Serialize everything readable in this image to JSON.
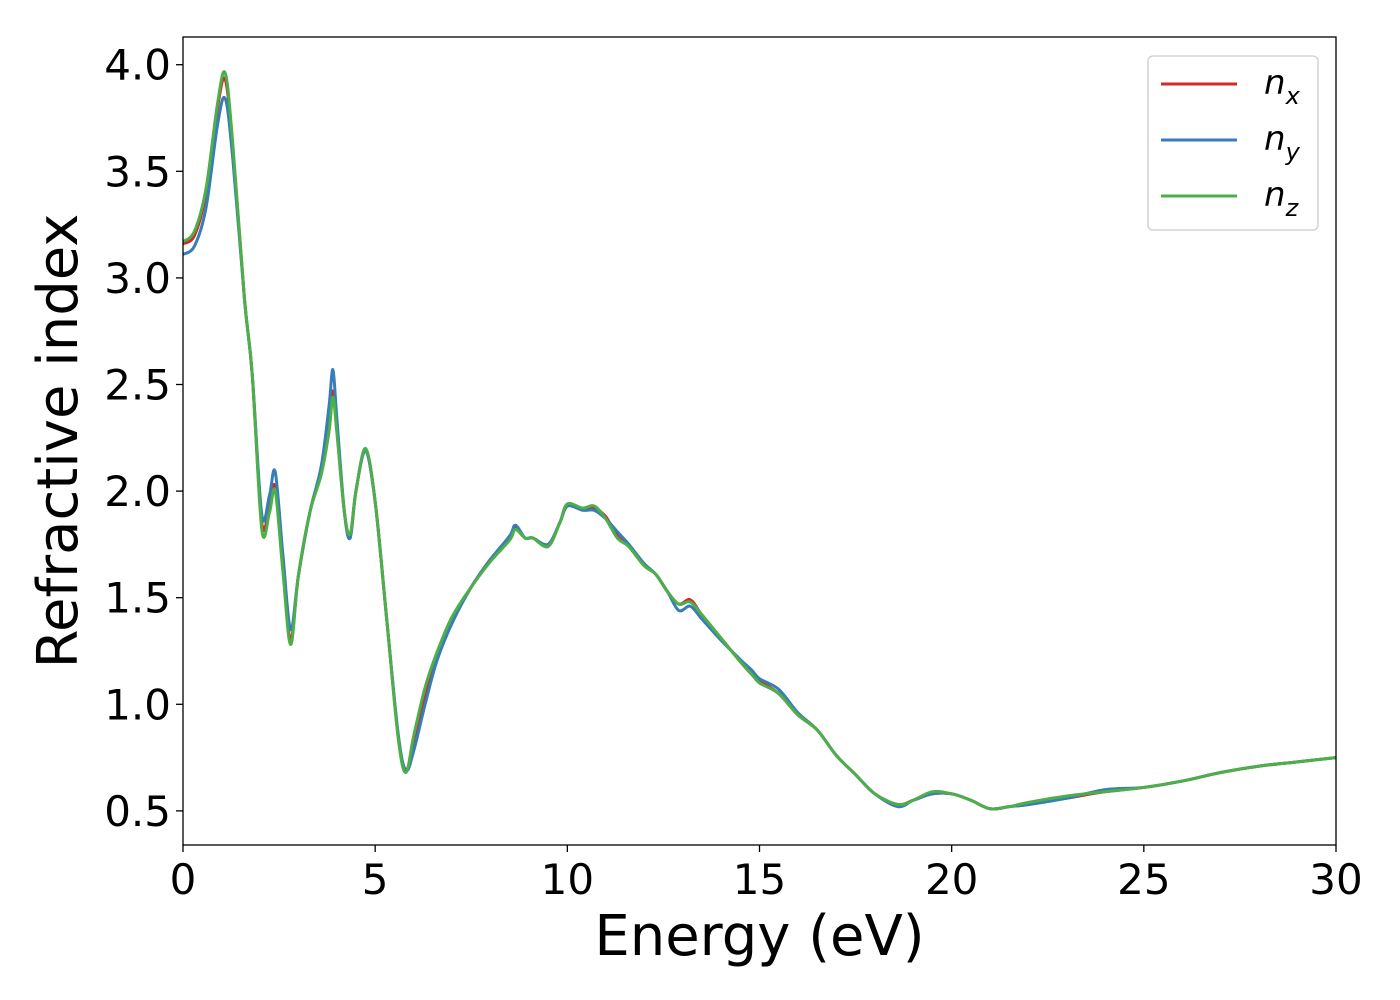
{
  "chart_data": {
    "type": "line",
    "title": "",
    "xlabel": "Energy (eV)",
    "ylabel": "Refractive index",
    "xlim": [
      0,
      30
    ],
    "ylim": [
      0.34,
      4.13
    ],
    "xticks": [
      0,
      5,
      10,
      15,
      20,
      25,
      30
    ],
    "xtick_labels": [
      "0",
      "5",
      "10",
      "15",
      "20",
      "25",
      "30"
    ],
    "yticks": [
      0.5,
      1.0,
      1.5,
      2.0,
      2.5,
      3.0,
      3.5,
      4.0
    ],
    "ytick_labels": [
      "0.5",
      "1.0",
      "1.5",
      "2.0",
      "2.5",
      "3.0",
      "3.5",
      "4.0"
    ],
    "grid": false,
    "legend_position": "top-right",
    "series": [
      {
        "name": "n_x",
        "name_main": "n",
        "name_sub": "x",
        "color": "#d62728",
        "x": [
          0,
          0.3,
          0.6,
          0.9,
          1.1,
          1.3,
          1.6,
          1.8,
          2.05,
          2.25,
          2.4,
          2.6,
          2.8,
          3.0,
          3.3,
          3.6,
          3.8,
          3.9,
          4.0,
          4.2,
          4.35,
          4.5,
          4.75,
          5.0,
          5.3,
          5.6,
          5.8,
          6.0,
          6.3,
          6.6,
          7.0,
          7.5,
          8.0,
          8.5,
          8.65,
          8.9,
          9.1,
          9.5,
          9.8,
          10.0,
          10.4,
          10.7,
          11.0,
          11.3,
          11.6,
          12.0,
          12.3,
          12.6,
          12.9,
          13.2,
          13.5,
          14.0,
          14.5,
          14.8,
          15.0,
          15.5,
          16.0,
          16.5,
          17.0,
          17.5,
          18.0,
          18.6,
          19.0,
          19.5,
          20.0,
          20.5,
          21.0,
          21.5,
          22.0,
          23.0,
          24.0,
          25.0,
          26.0,
          27.0,
          28.0,
          29.0,
          30.0
        ],
        "y": [
          3.16,
          3.2,
          3.4,
          3.8,
          3.93,
          3.6,
          2.9,
          2.55,
          1.85,
          1.93,
          2.02,
          1.65,
          1.3,
          1.6,
          1.9,
          2.1,
          2.32,
          2.47,
          2.3,
          1.9,
          1.79,
          2.0,
          2.19,
          1.95,
          1.4,
          0.85,
          0.69,
          0.82,
          1.05,
          1.22,
          1.4,
          1.55,
          1.68,
          1.78,
          1.83,
          1.78,
          1.78,
          1.75,
          1.85,
          1.93,
          1.92,
          1.92,
          1.88,
          1.79,
          1.74,
          1.65,
          1.61,
          1.53,
          1.47,
          1.49,
          1.42,
          1.31,
          1.2,
          1.14,
          1.11,
          1.05,
          0.95,
          0.88,
          0.76,
          0.67,
          0.58,
          0.53,
          0.55,
          0.58,
          0.58,
          0.55,
          0.51,
          0.52,
          0.53,
          0.56,
          0.59,
          0.61,
          0.64,
          0.68,
          0.71,
          0.73,
          0.75
        ]
      },
      {
        "name": "n_y",
        "name_main": "n",
        "name_sub": "y",
        "color": "#377eb8",
        "x": [
          0,
          0.3,
          0.6,
          0.9,
          1.1,
          1.3,
          1.6,
          1.8,
          2.05,
          2.25,
          2.4,
          2.6,
          2.8,
          3.0,
          3.3,
          3.6,
          3.8,
          3.9,
          4.0,
          4.2,
          4.35,
          4.5,
          4.75,
          5.0,
          5.3,
          5.6,
          5.8,
          6.0,
          6.3,
          6.6,
          7.0,
          7.5,
          8.0,
          8.5,
          8.65,
          8.9,
          9.1,
          9.5,
          9.8,
          10.0,
          10.4,
          10.7,
          11.0,
          11.3,
          11.6,
          12.0,
          12.3,
          12.6,
          12.9,
          13.2,
          13.5,
          14.0,
          14.5,
          14.8,
          15.0,
          15.5,
          16.0,
          16.5,
          17.0,
          17.5,
          18.0,
          18.6,
          19.0,
          19.5,
          20.0,
          20.5,
          21.0,
          21.5,
          22.0,
          23.0,
          24.0,
          25.0,
          26.0,
          27.0,
          28.0,
          29.0,
          30.0
        ],
        "y": [
          3.11,
          3.15,
          3.33,
          3.72,
          3.84,
          3.55,
          2.9,
          2.55,
          1.89,
          1.98,
          2.09,
          1.7,
          1.35,
          1.6,
          1.9,
          2.12,
          2.4,
          2.57,
          2.35,
          1.9,
          1.78,
          2.0,
          2.19,
          1.95,
          1.4,
          0.86,
          0.69,
          0.78,
          1.0,
          1.2,
          1.38,
          1.55,
          1.68,
          1.79,
          1.84,
          1.78,
          1.78,
          1.75,
          1.85,
          1.93,
          1.91,
          1.91,
          1.87,
          1.81,
          1.75,
          1.66,
          1.61,
          1.53,
          1.44,
          1.46,
          1.4,
          1.3,
          1.21,
          1.16,
          1.12,
          1.07,
          0.96,
          0.88,
          0.76,
          0.67,
          0.58,
          0.52,
          0.55,
          0.58,
          0.58,
          0.55,
          0.51,
          0.52,
          0.53,
          0.56,
          0.6,
          0.61,
          0.64,
          0.68,
          0.71,
          0.73,
          0.75
        ]
      },
      {
        "name": "n_z",
        "name_main": "n",
        "name_sub": "z",
        "color": "#4daf4a",
        "x": [
          0,
          0.3,
          0.6,
          0.9,
          1.1,
          1.3,
          1.6,
          1.8,
          2.05,
          2.25,
          2.4,
          2.6,
          2.8,
          3.0,
          3.3,
          3.6,
          3.8,
          3.9,
          4.0,
          4.2,
          4.35,
          4.5,
          4.75,
          5.0,
          5.3,
          5.6,
          5.8,
          6.0,
          6.3,
          6.6,
          7.0,
          7.5,
          8.0,
          8.5,
          8.65,
          8.9,
          9.1,
          9.5,
          9.8,
          10.0,
          10.4,
          10.7,
          11.0,
          11.3,
          11.6,
          12.0,
          12.3,
          12.6,
          12.9,
          13.2,
          13.5,
          14.0,
          14.5,
          14.8,
          15.0,
          15.5,
          16.0,
          16.5,
          17.0,
          17.5,
          18.0,
          18.6,
          19.0,
          19.5,
          20.0,
          20.5,
          21.0,
          21.5,
          22.0,
          23.0,
          24.0,
          25.0,
          26.0,
          27.0,
          28.0,
          29.0,
          30.0
        ],
        "y": [
          3.17,
          3.22,
          3.42,
          3.82,
          3.96,
          3.62,
          2.9,
          2.55,
          1.82,
          1.9,
          2.0,
          1.62,
          1.28,
          1.6,
          1.9,
          2.08,
          2.28,
          2.44,
          2.28,
          1.9,
          1.8,
          2.0,
          2.2,
          1.95,
          1.4,
          0.84,
          0.68,
          0.85,
          1.08,
          1.24,
          1.41,
          1.55,
          1.67,
          1.77,
          1.82,
          1.78,
          1.78,
          1.74,
          1.85,
          1.94,
          1.92,
          1.93,
          1.87,
          1.78,
          1.74,
          1.65,
          1.61,
          1.53,
          1.47,
          1.48,
          1.42,
          1.31,
          1.2,
          1.14,
          1.1,
          1.05,
          0.95,
          0.88,
          0.76,
          0.67,
          0.58,
          0.53,
          0.55,
          0.59,
          0.58,
          0.55,
          0.51,
          0.52,
          0.54,
          0.57,
          0.59,
          0.61,
          0.64,
          0.68,
          0.71,
          0.73,
          0.75
        ]
      }
    ]
  }
}
